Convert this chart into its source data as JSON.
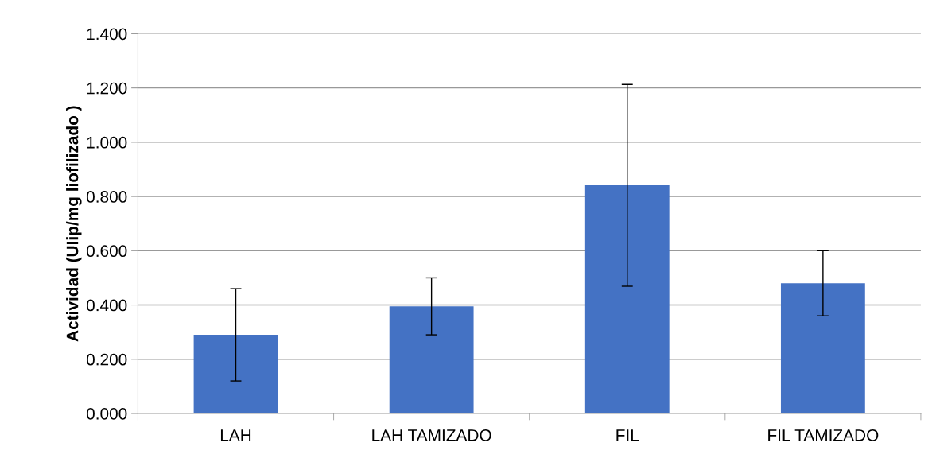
{
  "chart_data": {
    "type": "bar",
    "ylabel": "Actividad (UIip/mg liofilizado )",
    "categories": [
      "LAH",
      "LAH TAMIZADO",
      "FIL",
      "FIL TAMIZADO"
    ],
    "values": [
      0.29,
      0.395,
      0.841,
      0.48
    ],
    "errors": [
      0.17,
      0.105,
      0.372,
      0.12
    ],
    "color": "#4472c4",
    "ylim": [
      0,
      1.4
    ],
    "yticks": [
      {
        "value": 0,
        "label": "0.000"
      },
      {
        "value": 0.2,
        "label": "0.200"
      },
      {
        "value": 0.4,
        "label": "0.400"
      },
      {
        "value": 0.6,
        "label": "0.600"
      },
      {
        "value": 0.8,
        "label": "0.800"
      },
      {
        "value": 1.0,
        "label": "1.000"
      },
      {
        "value": 1.2,
        "label": "1.200"
      },
      {
        "value": 1.4,
        "label": "1.400"
      }
    ],
    "grid": "y"
  }
}
